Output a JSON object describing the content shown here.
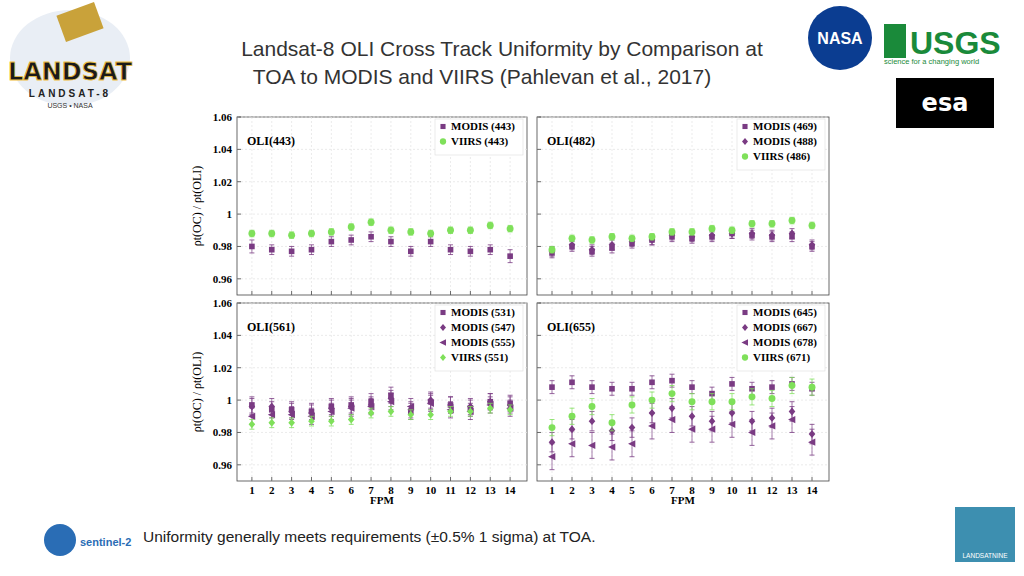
{
  "title": [
    "Landsat-8 OLI Cross Track Uniformity by Comparison at",
    "TOA to MODIS and VIIRS (Pahlevan et al., 2017)"
  ],
  "caption": "Uniformity generally meets requirements (±0.5% 1 sigma) at TOA.",
  "logos": [
    "LANDSAT",
    "LANDSAT-8",
    "USGS • NASA",
    "NASA",
    "USGS",
    "science for a changing world",
    "esa",
    "sentinel-2",
    "LANDSATNINE"
  ],
  "chart_data": [
    {
      "type": "scatter",
      "annotation": "OLI(443)",
      "ylabel": "ρt(OC) / ρt(OLI)",
      "x": [
        1,
        2,
        3,
        4,
        5,
        6,
        7,
        8,
        9,
        10,
        11,
        12,
        13,
        14
      ],
      "xlim": [
        0.25,
        14.85
      ],
      "xticks": [
        1,
        2,
        3,
        4,
        5,
        6,
        7,
        8,
        9,
        10,
        11,
        12,
        13,
        14
      ],
      "ylim": [
        0.95,
        1.06
      ],
      "yticks": [
        0.96,
        0.98,
        1,
        1.02,
        1.04,
        1.06
      ],
      "grid": true,
      "legend": "upper right",
      "tick_labels": "y",
      "series": [
        {
          "name": "MODIS (443)",
          "color": "#7a3b83",
          "marker": "square",
          "values": [
            0.98,
            0.978,
            0.977,
            0.978,
            0.983,
            0.984,
            0.986,
            0.983,
            0.977,
            0.983,
            0.978,
            0.977,
            0.978,
            0.974
          ],
          "errors": [
            0.004,
            0.003,
            0.003,
            0.003,
            0.003,
            0.003,
            0.003,
            0.003,
            0.003,
            0.003,
            0.003,
            0.003,
            0.003,
            0.004
          ]
        },
        {
          "name": "VIIRS (443)",
          "color": "#7fe05a",
          "marker": "circle",
          "values": [
            0.988,
            0.988,
            0.987,
            0.988,
            0.989,
            0.992,
            0.995,
            0.99,
            0.989,
            0.988,
            0.99,
            0.99,
            0.993,
            0.991
          ],
          "errors": [
            0.002,
            0.002,
            0.002,
            0.002,
            0.002,
            0.002,
            0.002,
            0.002,
            0.002,
            0.002,
            0.002,
            0.002,
            0.002,
            0.002
          ]
        }
      ]
    },
    {
      "type": "scatter",
      "annotation": "OLI(482)",
      "x": [
        1,
        2,
        3,
        4,
        5,
        6,
        7,
        8,
        9,
        10,
        11,
        12,
        13,
        14
      ],
      "xlim": [
        0.25,
        14.85
      ],
      "xticks": [
        1,
        2,
        3,
        4,
        5,
        6,
        7,
        8,
        9,
        10,
        11,
        12,
        13,
        14
      ],
      "ylim": [
        0.95,
        1.06
      ],
      "yticks": [
        0.96,
        0.98,
        1,
        1.02,
        1.04,
        1.06
      ],
      "grid": true,
      "legend": "upper right",
      "tick_labels": false,
      "series": [
        {
          "name": "MODIS (469)",
          "color": "#7a3b83",
          "marker": "square",
          "values": [
            0.976,
            0.98,
            0.977,
            0.979,
            0.982,
            0.984,
            0.986,
            0.985,
            0.986,
            0.988,
            0.987,
            0.986,
            0.986,
            0.98
          ],
          "errors": [
            0.003,
            0.003,
            0.003,
            0.003,
            0.003,
            0.003,
            0.003,
            0.003,
            0.003,
            0.003,
            0.003,
            0.003,
            0.003,
            0.003
          ]
        },
        {
          "name": "MODIS (488)",
          "color": "#7a3b83",
          "marker": "diamond",
          "values": [
            0.977,
            0.981,
            0.978,
            0.981,
            0.983,
            0.984,
            0.987,
            0.986,
            0.987,
            0.988,
            0.988,
            0.987,
            0.988,
            0.981
          ],
          "errors": [
            0.003,
            0.003,
            0.003,
            0.003,
            0.003,
            0.003,
            0.003,
            0.003,
            0.003,
            0.003,
            0.003,
            0.003,
            0.003,
            0.003
          ]
        },
        {
          "name": "VIIRS (486)",
          "color": "#7fe05a",
          "marker": "circle",
          "values": [
            0.978,
            0.985,
            0.984,
            0.986,
            0.985,
            0.986,
            0.989,
            0.989,
            0.991,
            0.99,
            0.994,
            0.994,
            0.996,
            0.993
          ],
          "errors": [
            0.002,
            0.002,
            0.002,
            0.002,
            0.002,
            0.002,
            0.002,
            0.002,
            0.002,
            0.002,
            0.002,
            0.002,
            0.002,
            0.002
          ]
        }
      ]
    },
    {
      "type": "scatter",
      "annotation": "OLI(561)",
      "ylabel": "ρt(OC) / ρt(OLI)",
      "xlabel": "FPM",
      "x": [
        1,
        2,
        3,
        4,
        5,
        6,
        7,
        8,
        9,
        10,
        11,
        12,
        13,
        14
      ],
      "xlim": [
        0.25,
        14.85
      ],
      "xticks": [
        1,
        2,
        3,
        4,
        5,
        6,
        7,
        8,
        9,
        10,
        11,
        12,
        13,
        14
      ],
      "ylim": [
        0.95,
        1.06
      ],
      "yticks": [
        0.96,
        0.98,
        1,
        1.02,
        1.04,
        1.06
      ],
      "grid": true,
      "legend": "upper right",
      "tick_labels": true,
      "series": [
        {
          "name": "MODIS (531)",
          "color": "#7a3b83",
          "marker": "square",
          "values": [
            0.997,
            0.994,
            0.994,
            0.993,
            0.996,
            0.997,
            0.999,
            1.003,
            0.993,
            0.999,
            0.997,
            0.995,
            0.999,
            0.998
          ],
          "errors": [
            0.005,
            0.005,
            0.005,
            0.005,
            0.005,
            0.005,
            0.005,
            0.005,
            0.005,
            0.005,
            0.005,
            0.005,
            0.005,
            0.005
          ]
        },
        {
          "name": "MODIS (547)",
          "color": "#7a3b83",
          "marker": "diamond",
          "values": [
            0.996,
            0.996,
            0.993,
            0.992,
            0.995,
            0.996,
            0.997,
            1.001,
            0.994,
            1.0,
            0.997,
            0.996,
            0.999,
            0.997
          ],
          "errors": [
            0.005,
            0.005,
            0.005,
            0.005,
            0.005,
            0.005,
            0.005,
            0.005,
            0.005,
            0.005,
            0.005,
            0.005,
            0.005,
            0.005
          ]
        },
        {
          "name": "MODIS (555)",
          "color": "#7a3b83",
          "marker": "triangle-left",
          "values": [
            0.99,
            0.991,
            0.991,
            0.99,
            0.993,
            0.995,
            0.996,
            0.999,
            0.996,
            0.998,
            0.994,
            0.993,
            0.997,
            0.995
          ],
          "errors": [
            0.005,
            0.005,
            0.005,
            0.005,
            0.005,
            0.005,
            0.005,
            0.005,
            0.005,
            0.005,
            0.005,
            0.005,
            0.005,
            0.005
          ]
        },
        {
          "name": "VIIRS (551)",
          "color": "#7fe05a",
          "marker": "diamond",
          "values": [
            0.985,
            0.986,
            0.986,
            0.987,
            0.987,
            0.988,
            0.992,
            0.993,
            0.991,
            0.991,
            0.993,
            0.993,
            0.995,
            0.994
          ],
          "errors": [
            0.003,
            0.003,
            0.003,
            0.003,
            0.003,
            0.003,
            0.003,
            0.003,
            0.003,
            0.003,
            0.003,
            0.003,
            0.003,
            0.003
          ]
        }
      ]
    },
    {
      "type": "scatter",
      "annotation": "OLI(655)",
      "xlabel": "FPM",
      "x": [
        1,
        2,
        3,
        4,
        5,
        6,
        7,
        8,
        9,
        10,
        11,
        12,
        13,
        14
      ],
      "xlim": [
        0.25,
        14.85
      ],
      "xticks": [
        1,
        2,
        3,
        4,
        5,
        6,
        7,
        8,
        9,
        10,
        11,
        12,
        13,
        14
      ],
      "ylim": [
        0.95,
        1.06
      ],
      "yticks": [
        0.96,
        0.98,
        1,
        1.02,
        1.04,
        1.06
      ],
      "grid": true,
      "legend": "upper right",
      "tick_labels": "x",
      "series": [
        {
          "name": "MODIS (645)",
          "color": "#7a3b83",
          "marker": "square",
          "values": [
            1.008,
            1.011,
            1.008,
            1.007,
            1.007,
            1.011,
            1.012,
            1.008,
            1.004,
            1.01,
            1.007,
            1.008,
            1.01,
            1.007
          ],
          "errors": [
            0.004,
            0.004,
            0.004,
            0.004,
            0.004,
            0.004,
            0.004,
            0.004,
            0.004,
            0.004,
            0.004,
            0.004,
            0.004,
            0.004
          ]
        },
        {
          "name": "MODIS (667)",
          "color": "#7a3b83",
          "marker": "diamond",
          "values": [
            0.974,
            0.982,
            0.987,
            0.981,
            0.983,
            0.992,
            0.995,
            0.99,
            0.987,
            0.992,
            0.987,
            0.989,
            0.993,
            0.979
          ],
          "errors": [
            0.006,
            0.006,
            0.006,
            0.006,
            0.006,
            0.006,
            0.006,
            0.006,
            0.006,
            0.006,
            0.006,
            0.006,
            0.006,
            0.006
          ]
        },
        {
          "name": "MODIS (678)",
          "color": "#7a3b83",
          "marker": "triangle-left",
          "values": [
            0.965,
            0.973,
            0.972,
            0.971,
            0.973,
            0.984,
            0.988,
            0.982,
            0.982,
            0.985,
            0.98,
            0.984,
            0.988,
            0.974
          ],
          "errors": [
            0.008,
            0.008,
            0.008,
            0.008,
            0.008,
            0.008,
            0.008,
            0.008,
            0.008,
            0.008,
            0.008,
            0.008,
            0.008,
            0.008
          ]
        },
        {
          "name": "VIIRS (671)",
          "color": "#7fe05a",
          "marker": "circle",
          "values": [
            0.983,
            0.99,
            0.996,
            0.986,
            0.997,
            1.0,
            1.004,
            0.999,
            0.999,
            0.999,
            1.002,
            1.001,
            1.009,
            1.008
          ],
          "errors": [
            0.005,
            0.005,
            0.005,
            0.005,
            0.005,
            0.005,
            0.005,
            0.005,
            0.005,
            0.005,
            0.005,
            0.005,
            0.005,
            0.005
          ]
        }
      ]
    }
  ]
}
